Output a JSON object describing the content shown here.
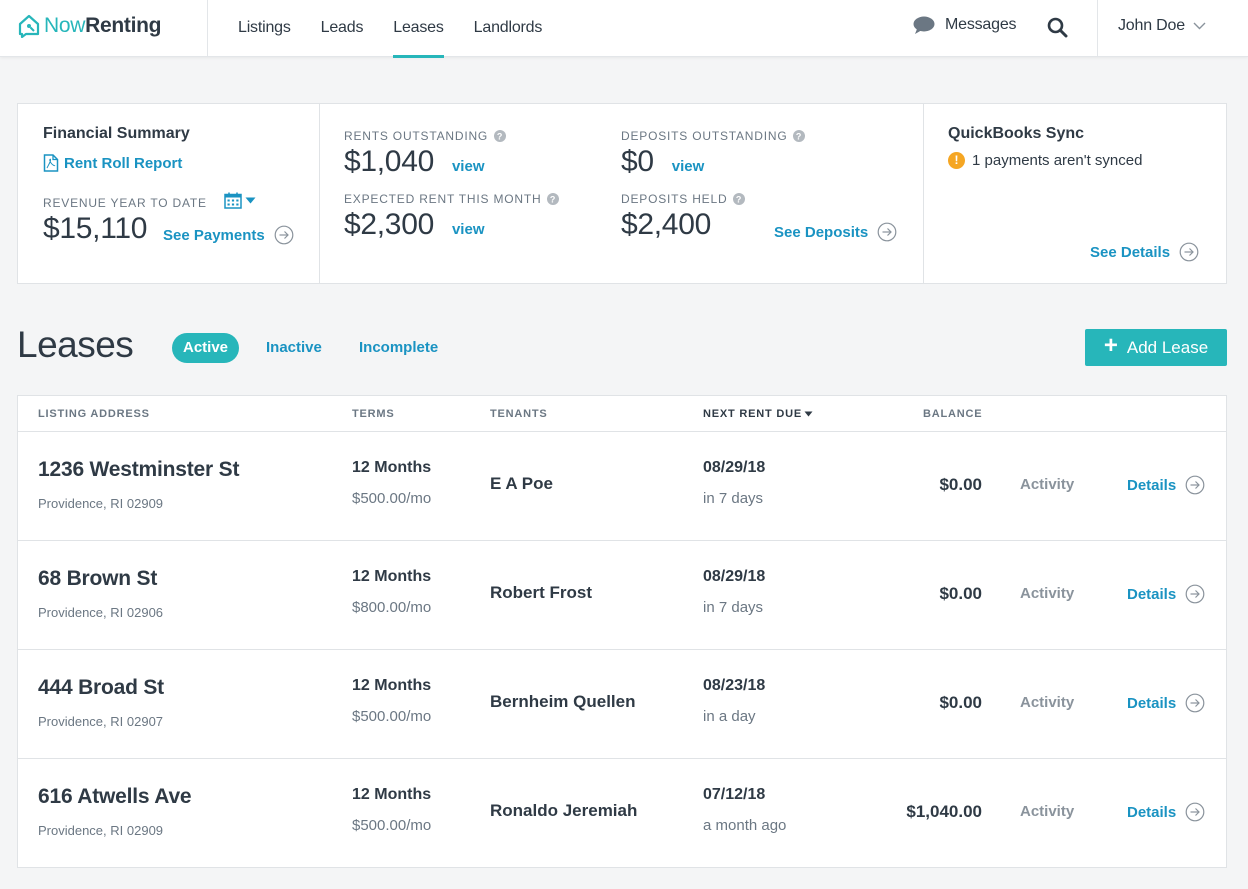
{
  "brand": {
    "name_light": "Now",
    "name_bold": "Renting",
    "color": "#27b6ba"
  },
  "nav": {
    "links": [
      "Listings",
      "Leads",
      "Leases",
      "Landlords"
    ],
    "active": "Leases",
    "messages": "Messages",
    "user": "John Doe"
  },
  "financial_summary": {
    "title": "Financial Summary",
    "rent_roll_report": "Rent Roll Report",
    "revenue_label": "Revenue year to date",
    "revenue_value": "$15,110",
    "see_payments": "See Payments"
  },
  "metrics": {
    "rents_outstanding": {
      "label": "Rents Outstanding",
      "value": "$1,040",
      "link": "view"
    },
    "expected_rent": {
      "label": "Expected Rent This Month",
      "value": "$2,300",
      "link": "view"
    },
    "deposits_outstanding": {
      "label": "Deposits Outstanding",
      "value": "$0",
      "link": "view"
    },
    "deposits_held": {
      "label": "Deposits Held",
      "value": "$2,400"
    },
    "see_deposits": "See Deposits"
  },
  "quickbooks": {
    "title": "QuickBooks Sync",
    "warning": "1 payments aren't synced",
    "see_details": "See Details"
  },
  "leases": {
    "title": "Leases",
    "filters": [
      "Active",
      "Inactive",
      "Incomplete"
    ],
    "active_filter": "Active",
    "add_button": "Add Lease",
    "columns": {
      "address": "Listing Address",
      "terms": "Terms",
      "tenants": "Tenants",
      "next_rent_due": "Next Rent Due",
      "balance": "Balance"
    },
    "activity_label": "Activity",
    "details_label": "Details",
    "rows": [
      {
        "address": "1236 Westminster St",
        "city": "Providence, RI 02909",
        "term": "12 Months",
        "rent": "$500.00/mo",
        "tenant": "E A Poe",
        "due": "08/29/18",
        "due_rel": "in 7 days",
        "balance": "$0.00"
      },
      {
        "address": "68 Brown St",
        "city": "Providence, RI 02906",
        "term": "12 Months",
        "rent": "$800.00/mo",
        "tenant": "Robert Frost",
        "due": "08/29/18",
        "due_rel": "in 7 days",
        "balance": "$0.00"
      },
      {
        "address": "444 Broad St",
        "city": "Providence, RI 02907",
        "term": "12 Months",
        "rent": "$500.00/mo",
        "tenant": "Bernheim Quellen",
        "due": "08/23/18",
        "due_rel": "in a day",
        "balance": "$0.00"
      },
      {
        "address": "616 Atwells Ave",
        "city": "Providence, RI 02909",
        "term": "12 Months",
        "rent": "$500.00/mo",
        "tenant": "Ronaldo Jeremiah",
        "due": "07/12/18",
        "due_rel": "a month ago",
        "balance": "$1,040.00"
      }
    ]
  },
  "colors": {
    "accent": "#27b6ba",
    "link": "#1a93c2",
    "warning": "#f5a623",
    "text": "#2f3a45",
    "muted": "#6b7783"
  }
}
